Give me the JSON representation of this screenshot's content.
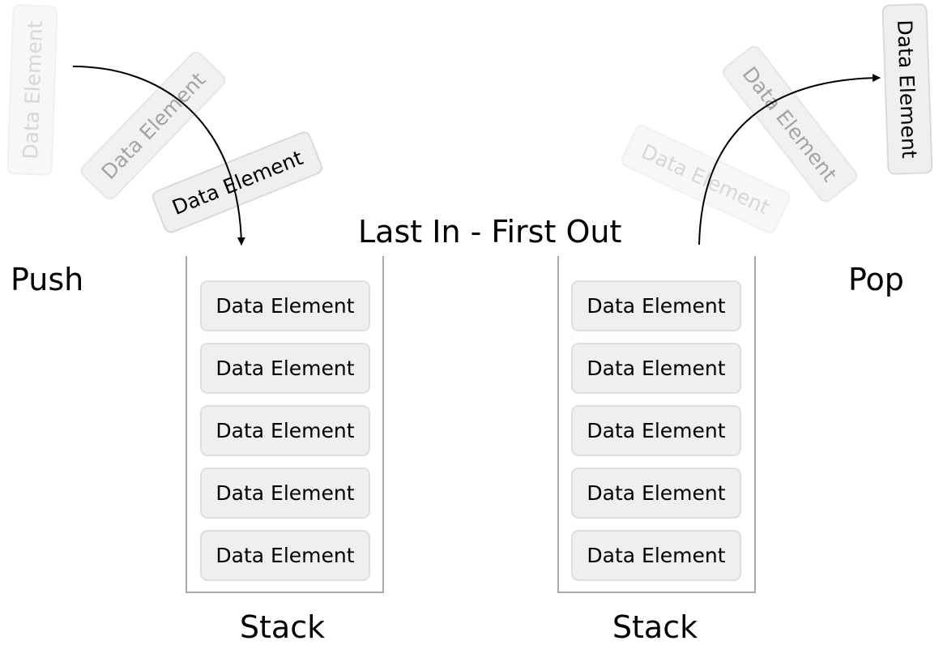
{
  "title": "Last In - First Out",
  "push_label": "Push",
  "pop_label": "Pop",
  "element_label": "Data Element",
  "stacks": [
    {
      "label": "Stack",
      "elements": [
        "Data Element",
        "Data Element",
        "Data Element",
        "Data Element",
        "Data Element"
      ]
    },
    {
      "label": "Stack",
      "elements": [
        "Data Element",
        "Data Element",
        "Data Element",
        "Data Element",
        "Data Element"
      ]
    }
  ],
  "push_sequence": [
    "Data Element",
    "Data Element",
    "Data Element"
  ],
  "pop_sequence": [
    "Data Element",
    "Data Element",
    "Data Element"
  ],
  "colors": {
    "element_fill": "#efefef",
    "element_border": "#dedede",
    "stack_border": "#a9a9a9",
    "arrow": "#000000"
  }
}
